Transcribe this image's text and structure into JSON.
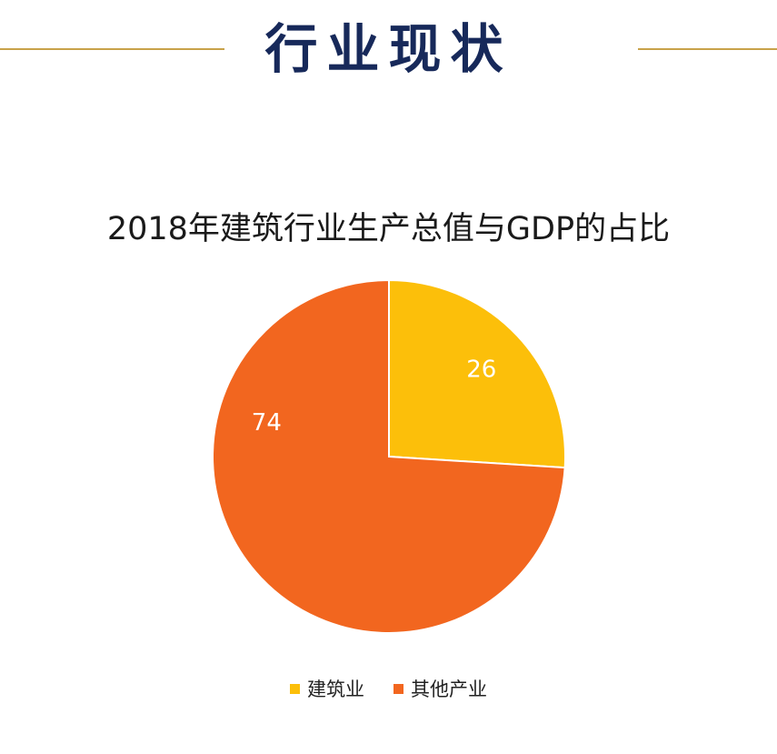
{
  "page_title": "行业现状",
  "colors": {
    "title": "#17295a",
    "divider": "#c8a24a",
    "construction": "#fcbf0a",
    "other": "#f2661f",
    "label": "#ffffff"
  },
  "chart_data": {
    "type": "pie",
    "title": "2018年建筑行业生产总值与GDP的占比",
    "categories": [
      "建筑业",
      "其他产业"
    ],
    "values": [
      26,
      74
    ],
    "data_labels": [
      "26",
      "74"
    ],
    "legend_position": "bottom",
    "start_angle_deg": 0,
    "direction": "clockwise"
  },
  "legend": {
    "items": [
      {
        "label": "建筑业",
        "color": "#fcbf0a"
      },
      {
        "label": "其他产业",
        "color": "#f2661f"
      }
    ]
  }
}
